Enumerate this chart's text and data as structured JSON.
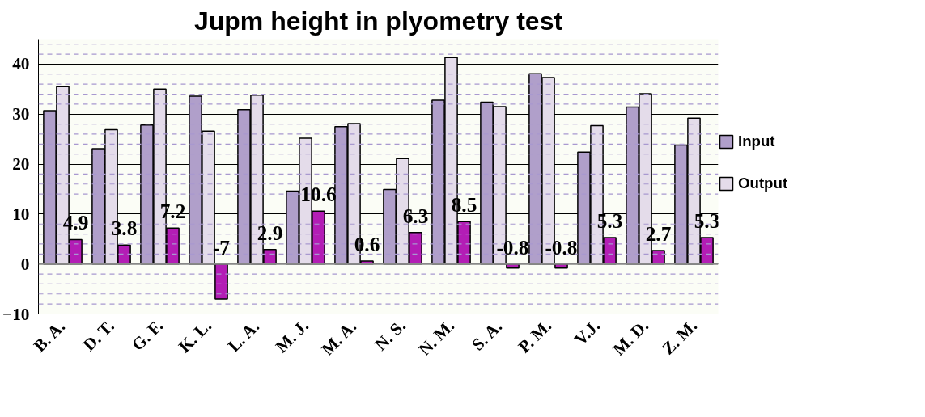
{
  "chart_data": {
    "type": "bar",
    "title": "Jupm height in plyometry test",
    "categories": [
      "B. A.",
      "D. T.",
      "G. F.",
      "K. L.",
      "L. A.",
      "M. J.",
      "M. A.",
      "N. S.",
      "N. M.",
      "S. A.",
      "P. M.",
      "V.J.",
      "M. D.",
      "Z. M."
    ],
    "series": [
      {
        "name": "Input",
        "color": "#b09fca",
        "values": [
          30.7,
          23.1,
          27.8,
          33.6,
          30.9,
          14.6,
          27.5,
          14.9,
          32.8,
          32.4,
          38.1,
          22.4,
          31.4,
          23.8
        ]
      },
      {
        "name": "Output",
        "color": "#e4dcea",
        "values": [
          35.5,
          26.9,
          35.0,
          26.6,
          33.8,
          25.2,
          28.1,
          21.1,
          41.3,
          31.5,
          37.3,
          27.7,
          34.1,
          29.2
        ]
      },
      {
        "color": "#b31db5",
        "values": [
          4.9,
          3.8,
          7.2,
          -7,
          2.9,
          10.6,
          0.6,
          6.3,
          8.5,
          -0.8,
          -0.8,
          5.3,
          2.7,
          5.3
        ],
        "value_labels": [
          "4.9",
          "3.8",
          "7.2",
          "-7",
          "2.9",
          "10.6",
          "0.6",
          "6.3",
          "8.5",
          "-0.8",
          "-0.8",
          "5.3",
          "2.7",
          "5.3"
        ]
      }
    ],
    "ylim": [
      -10,
      45
    ],
    "yticks": [
      -10,
      {
        "value": -8,
        "label": null
      },
      {
        "value": -6,
        "label": null
      },
      {
        "value": -4,
        "label": null
      },
      {
        "value": -2,
        "label": null
      },
      0,
      {
        "value": 2,
        "label": null
      },
      {
        "value": 4,
        "label": null
      },
      {
        "value": 6,
        "label": null
      },
      {
        "value": 8,
        "label": null
      },
      10,
      {
        "value": 12,
        "label": null
      },
      {
        "value": 14,
        "label": null
      },
      {
        "value": 16,
        "label": null
      },
      {
        "value": 18,
        "label": null
      },
      20,
      {
        "value": 22,
        "label": null
      },
      {
        "value": 24,
        "label": null
      },
      {
        "value": 26,
        "label": null
      },
      {
        "value": 28,
        "label": null
      },
      30,
      {
        "value": 32,
        "label": null
      },
      {
        "value": 34,
        "label": null
      },
      {
        "value": 36,
        "label": null
      },
      {
        "value": 38,
        "label": null
      },
      40,
      {
        "value": 42,
        "label": null
      },
      {
        "value": 44,
        "label": null
      }
    ],
    "grid": "y",
    "legend": "right"
  }
}
